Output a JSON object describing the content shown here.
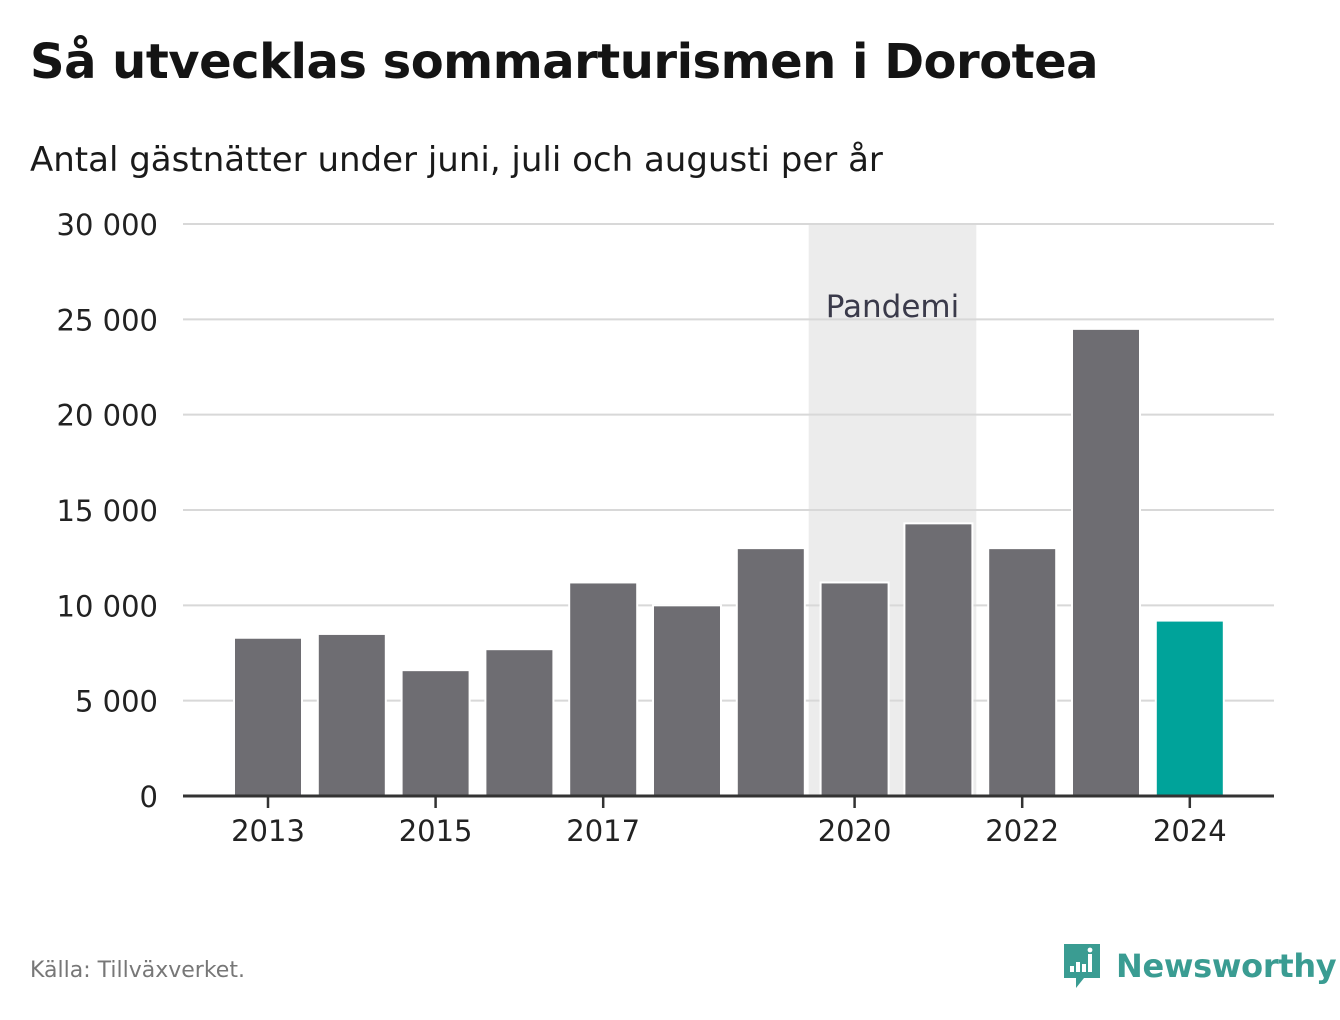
{
  "title": "Så utvecklas sommarturismen i Dorotea",
  "subtitle": "Antal gästnätter under juni, juli och augusti per år",
  "source": "Källa: Tillväxverket.",
  "brand": "Newsworthy",
  "colors": {
    "bar": "#6e6d72",
    "highlight": "#00a39a",
    "band": "#ececec",
    "grid": "#d8d8d8",
    "axis": "#333333",
    "brand": "#3a9c92"
  },
  "chart_data": {
    "type": "bar",
    "categories": [
      "2013",
      "2014",
      "2015",
      "2016",
      "2017",
      "2018",
      "2019",
      "2020",
      "2021",
      "2022",
      "2023",
      "2024"
    ],
    "values": [
      8300,
      8500,
      6600,
      7700,
      11200,
      10000,
      13000,
      11200,
      14300,
      13000,
      24500,
      9200
    ],
    "highlight_category": "2024",
    "ylim": [
      0,
      30000
    ],
    "yticks": [
      0,
      5000,
      10000,
      15000,
      20000,
      25000,
      30000
    ],
    "ytick_labels": [
      "0",
      "5 000",
      "10 000",
      "15 000",
      "20 000",
      "25 000",
      "30 000"
    ],
    "xtick_labels": [
      "2013",
      "2015",
      "2017",
      "2020",
      "2022",
      "2024"
    ],
    "annotation": {
      "label": "Pandemi",
      "x_start": "2020",
      "x_end": "2021"
    },
    "grid": true,
    "legend": "none"
  }
}
